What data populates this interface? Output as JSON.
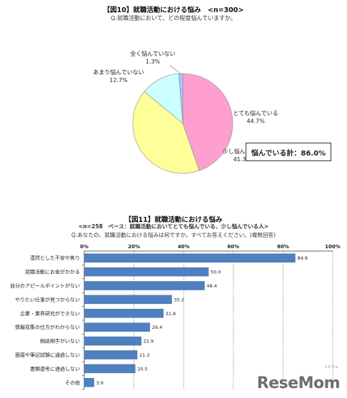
{
  "figure10": {
    "title": "【図10】就職活動における悩み　<n=300>",
    "question": "Q.就職活動において、どの程度悩んでいますか。",
    "summary": "悩んでいる計：86.0%",
    "chart_data": {
      "type": "pie",
      "slices": [
        {
          "label": "とても悩んでいる",
          "value": 44.7,
          "value_label": "44.7%",
          "color": "#ff9fd0"
        },
        {
          "label": "少し悩んでいる",
          "value": 41.3,
          "value_label": "41.3%",
          "color": "#ffff99"
        },
        {
          "label": "あまり悩んでいない",
          "value": 12.7,
          "value_label": "12.7%",
          "color": "#ccffff"
        },
        {
          "label": "全く悩んでいない",
          "value": 1.3,
          "value_label": "1.3%",
          "color": "#99ccff"
        }
      ]
    }
  },
  "figure11": {
    "title": "【図11】就職活動における悩み",
    "base": "<n=258　ベース：就職活動においてとても悩んでいる、少し悩んでいる人>",
    "question": "Q.あなたの、就職活動における悩みは何ですか。すべてお答えください。(複数回答)",
    "chart_data": {
      "type": "bar",
      "orientation": "horizontal",
      "categories": [
        "漠然とした不安や焦り",
        "就職活動にお金がかかる",
        "自分のアピールポイントがない",
        "やりたい仕事が見つからない",
        "企業・業界研究ができない",
        "情報収集の仕方がわからない",
        "相談相手がいない",
        "面接や筆記試験に通過しない",
        "書類選考に通過しない",
        "その他"
      ],
      "values": [
        84.9,
        50.0,
        48.4,
        35.2,
        31.8,
        26.4,
        22.9,
        21.3,
        20.5,
        3.9
      ],
      "value_labels": [
        "84.9",
        "50.0",
        "48.4",
        "35.2",
        "31.8",
        "26.4",
        "22.9",
        "21.3",
        "20.5",
        "3.9"
      ],
      "xlim": [
        0,
        100
      ],
      "xticks": [
        "0%",
        "20%",
        "40%",
        "60%",
        "80%",
        "100%"
      ],
      "bar_color": "#4f80c0"
    }
  },
  "logo": {
    "text": "ReseMom",
    "ruby": "リセマム"
  }
}
